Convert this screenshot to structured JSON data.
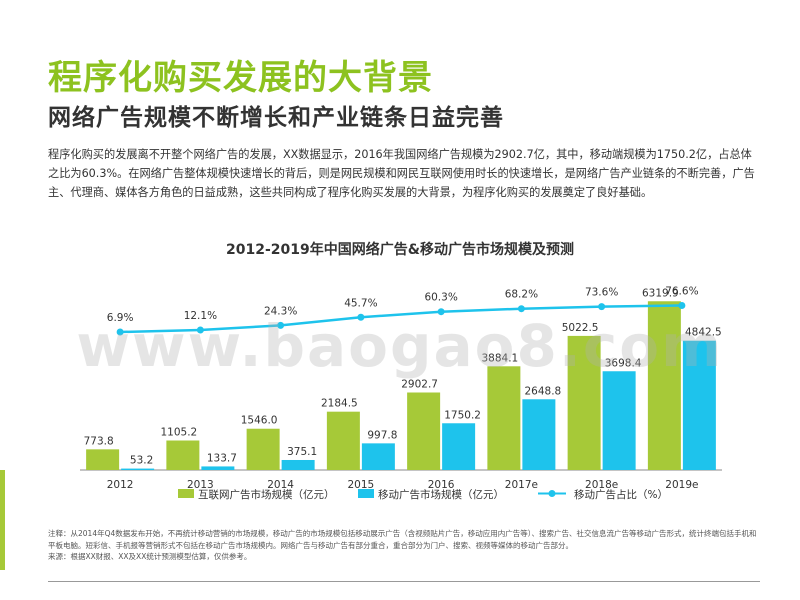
{
  "page": {
    "title": "程序化购买发展的大背景",
    "subtitle": "网络广告规模不断增长和产业链条日益完善",
    "intro": "程序化购买的发展离不开整个网络广告的发展，XX数据显示，2016年我国网络广告规模为2902.7亿，其中，移动端规模为1750.2亿，占总体之比为60.3%。在网络广告整体规模快速增长的背后，则是网民规模和网民互联网使用时长的快速增长，是网络广告产业链条的不断完善，广告主、代理商、媒体各方角色的日益成熟，这些共同构成了程序化购买发展的大背景，为程序化购买的发展奠定了良好基础。",
    "watermark": "www.baogao8.com",
    "note": "注释：从2014年Q4数据发布开始，不再统计移动营销的市场规模，移动广告的市场规模包括移动展示广告（含视频贴片广告，移动应用内广告等）、搜索广告、社交信息流广告等移动广告形式，统计终端包括手机和平板电脑。短彩信、手机报等营销形式不包括在移动广告市场规模内。网络广告与移动广告有部分重合，重合部分为门户、搜索、视频等媒体的移动广告部分。",
    "source": "来源：根据XX财报、XX及XX统计预测模型估算，仅供参考。"
  },
  "chart_data": {
    "type": "bar",
    "title": "2012-2019年中国网络广告&移动广告市场规模及预测",
    "categories": [
      "2012",
      "2013",
      "2014",
      "2015",
      "2016",
      "2017e",
      "2018e",
      "2019e"
    ],
    "series": [
      {
        "name": "互联网广告市场规模（亿元）",
        "type": "bar",
        "color": "#a6c938",
        "values": [
          773.8,
          1105.2,
          1546.0,
          2184.5,
          2902.7,
          3884.1,
          5022.5,
          6319.9
        ],
        "labels": [
          "773.8",
          "1105.2",
          "1546.0",
          "2184.5",
          "2902.7",
          "3884.1",
          "5022.5",
          "6319.9"
        ]
      },
      {
        "name": "移动广告市场规模（亿元）",
        "type": "bar",
        "color": "#1ec3ec",
        "values": [
          53.2,
          133.7,
          375.1,
          997.8,
          1750.2,
          2648.8,
          3698.4,
          4842.5
        ],
        "labels": [
          "53.2",
          "133.7",
          "375.1",
          "997.8",
          "1750.2",
          "2648.8",
          "3698.4",
          "4842.5"
        ]
      },
      {
        "name": "移动广告占比（%）",
        "type": "line",
        "color": "#1ec3ec",
        "values": [
          6.9,
          12.1,
          24.3,
          45.7,
          60.3,
          68.2,
          73.6,
          76.6
        ],
        "labels": [
          "6.9%",
          "12.1%",
          "24.3%",
          "45.7%",
          "60.3%",
          "68.2%",
          "73.6%",
          "76.6%"
        ]
      }
    ],
    "ylim": [
      0,
      7000
    ],
    "y2lim": [
      0,
      300
    ],
    "grid": false,
    "legend": "bottom"
  }
}
